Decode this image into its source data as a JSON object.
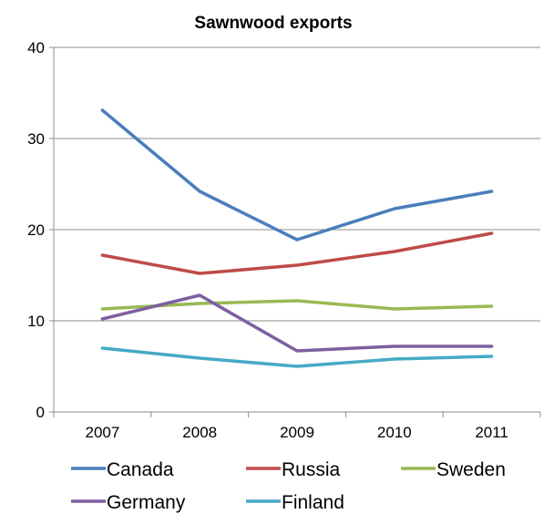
{
  "chart_data": {
    "type": "line",
    "title": "Sawnwood exports",
    "xlabel": "",
    "ylabel": "",
    "categories": [
      "2007",
      "2008",
      "2009",
      "2010",
      "2011"
    ],
    "ylim": [
      0,
      40
    ],
    "yticks": [
      0,
      10,
      20,
      30,
      40
    ],
    "grid": true,
    "legend_position": "bottom",
    "series": [
      {
        "name": "Canada",
        "color": "#4a7ebb",
        "values": [
          33.1,
          24.2,
          18.9,
          22.3,
          24.2
        ]
      },
      {
        "name": "Russia",
        "color": "#be4b48",
        "values": [
          17.2,
          15.2,
          16.1,
          17.6,
          19.6
        ]
      },
      {
        "name": "Sweden",
        "color": "#98b954",
        "values": [
          11.3,
          11.9,
          12.2,
          11.3,
          11.6
        ]
      },
      {
        "name": "Germany",
        "color": "#7d5fa0",
        "values": [
          10.2,
          12.8,
          6.7,
          7.2,
          7.2
        ]
      },
      {
        "name": "Finland",
        "color": "#46aac5",
        "values": [
          7.0,
          5.9,
          5.0,
          5.8,
          6.1
        ]
      }
    ]
  }
}
